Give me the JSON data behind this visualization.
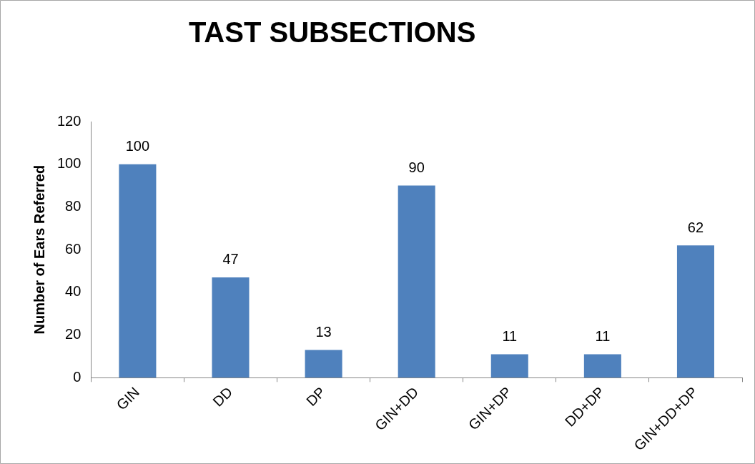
{
  "chart_data": {
    "type": "bar",
    "title": "TAST SUBSECTIONS",
    "ylabel": "Number of Ears Referred",
    "categories": [
      "GIN",
      "DD",
      "DP",
      "GIN+DD",
      "GIN+DP",
      "DD+DP",
      "GIN+DD+DP"
    ],
    "values": [
      100,
      47,
      13,
      90,
      11,
      11,
      62
    ],
    "color": "#4f81bd",
    "ylim": [
      0,
      120
    ],
    "yticks": [
      0,
      20,
      40,
      60,
      80,
      100,
      120
    ],
    "grid": false,
    "legend": false,
    "data_labels": true
  }
}
